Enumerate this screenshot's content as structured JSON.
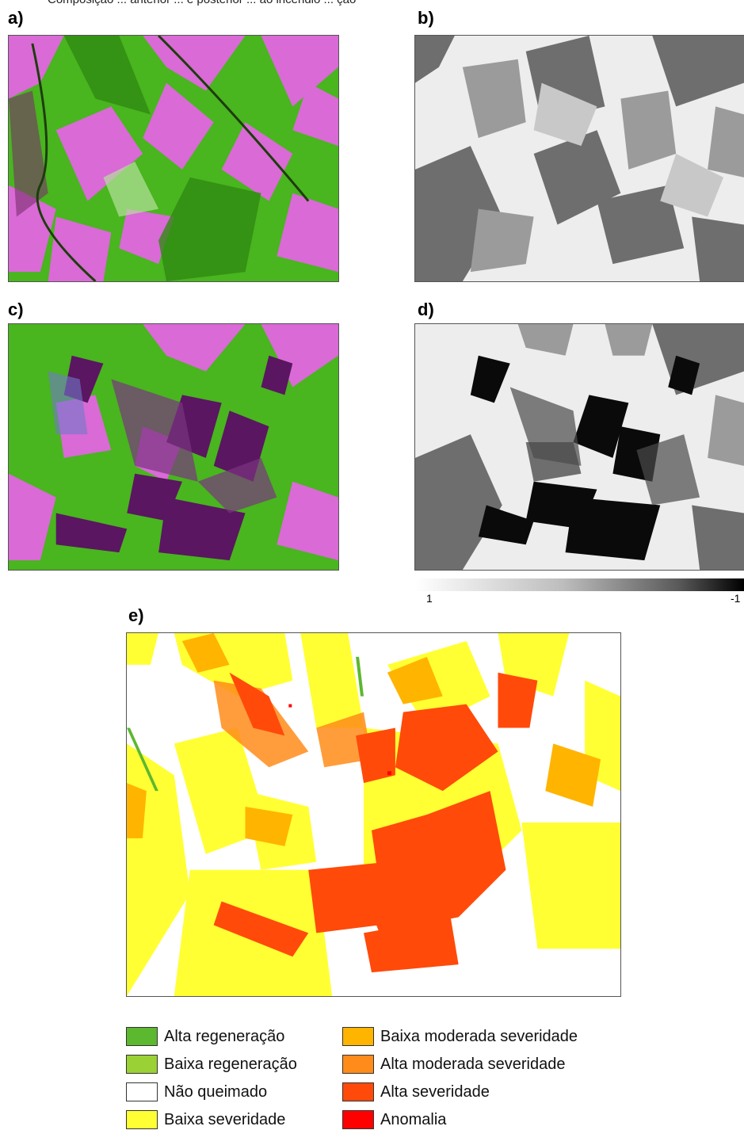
{
  "caption_fragment": "Composição ... anterior ... e posterior ... ao incêndio ... ção",
  "panels": {
    "a": {
      "label": "a)"
    },
    "b": {
      "label": "b)"
    },
    "c": {
      "label": "c)"
    },
    "d": {
      "label": "d)"
    },
    "e": {
      "label": "e)"
    }
  },
  "colorbar": {
    "min_label": "1",
    "max_label": "-1"
  },
  "legend": [
    {
      "label": "Alta regeneração",
      "color": "#5cb82e"
    },
    {
      "label": "Baixa regeneração",
      "color": "#9ad134"
    },
    {
      "label": "Não queimado",
      "color": "#ffffff"
    },
    {
      "label": "Baixa severidade",
      "color": "#ffff33"
    },
    {
      "label": "Baixa moderada severidade",
      "color": "#ffb400"
    },
    {
      "label": "Alta moderada severidade",
      "color": "#ff8c1a"
    },
    {
      "label": "Alta severidade",
      "color": "#ff4a0a"
    },
    {
      "label": "Anomalia",
      "color": "#ff0000"
    }
  ],
  "colors": {
    "vegetation": "#49b51f",
    "bare_soil": "#d96ad6",
    "burn_scar": "#5a1660",
    "dark_gray": "#6e6e6e",
    "light_gray": "#ededed",
    "white": "#ffffff",
    "yellow": "#ffff33",
    "orange": "#ff4a0a"
  }
}
